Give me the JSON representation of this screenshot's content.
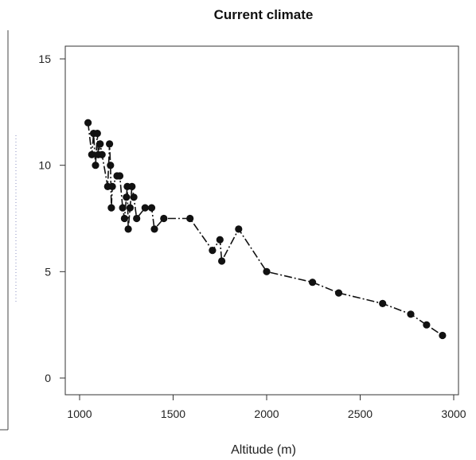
{
  "chart_data": {
    "type": "line",
    "title": "Current climate",
    "xlabel": "Altitude (m)",
    "ylabel": "",
    "xlim": [
      1000,
      3000
    ],
    "ylim": [
      0,
      15
    ],
    "x_ticks": [
      1000,
      1500,
      2000,
      2500,
      3000
    ],
    "y_ticks": [
      0,
      5,
      10,
      15
    ],
    "grid": false,
    "series": [
      {
        "x": [
          1045,
          1065,
          1075,
          1085,
          1095,
          1100,
          1110,
          1120,
          1150,
          1160,
          1165,
          1170,
          1175,
          1200,
          1215,
          1230,
          1240,
          1250,
          1255,
          1260,
          1270,
          1280,
          1290,
          1305,
          1350,
          1385,
          1400,
          1450,
          1590,
          1710,
          1750,
          1760,
          1850,
          2000,
          2245,
          2385,
          2620,
          2770,
          2855,
          2940
        ],
        "y": [
          12.0,
          10.5,
          11.5,
          10.0,
          11.5,
          10.5,
          11.0,
          10.5,
          9.0,
          11.0,
          10.0,
          8.0,
          9.0,
          9.5,
          9.5,
          8.0,
          7.5,
          8.5,
          9.0,
          7.0,
          8.0,
          9.0,
          8.5,
          7.5,
          8.0,
          8.0,
          7.0,
          7.5,
          7.5,
          6.0,
          6.5,
          5.5,
          7.0,
          5.0,
          4.5,
          4.0,
          3.5,
          3.0,
          2.5,
          2.0
        ]
      }
    ]
  }
}
